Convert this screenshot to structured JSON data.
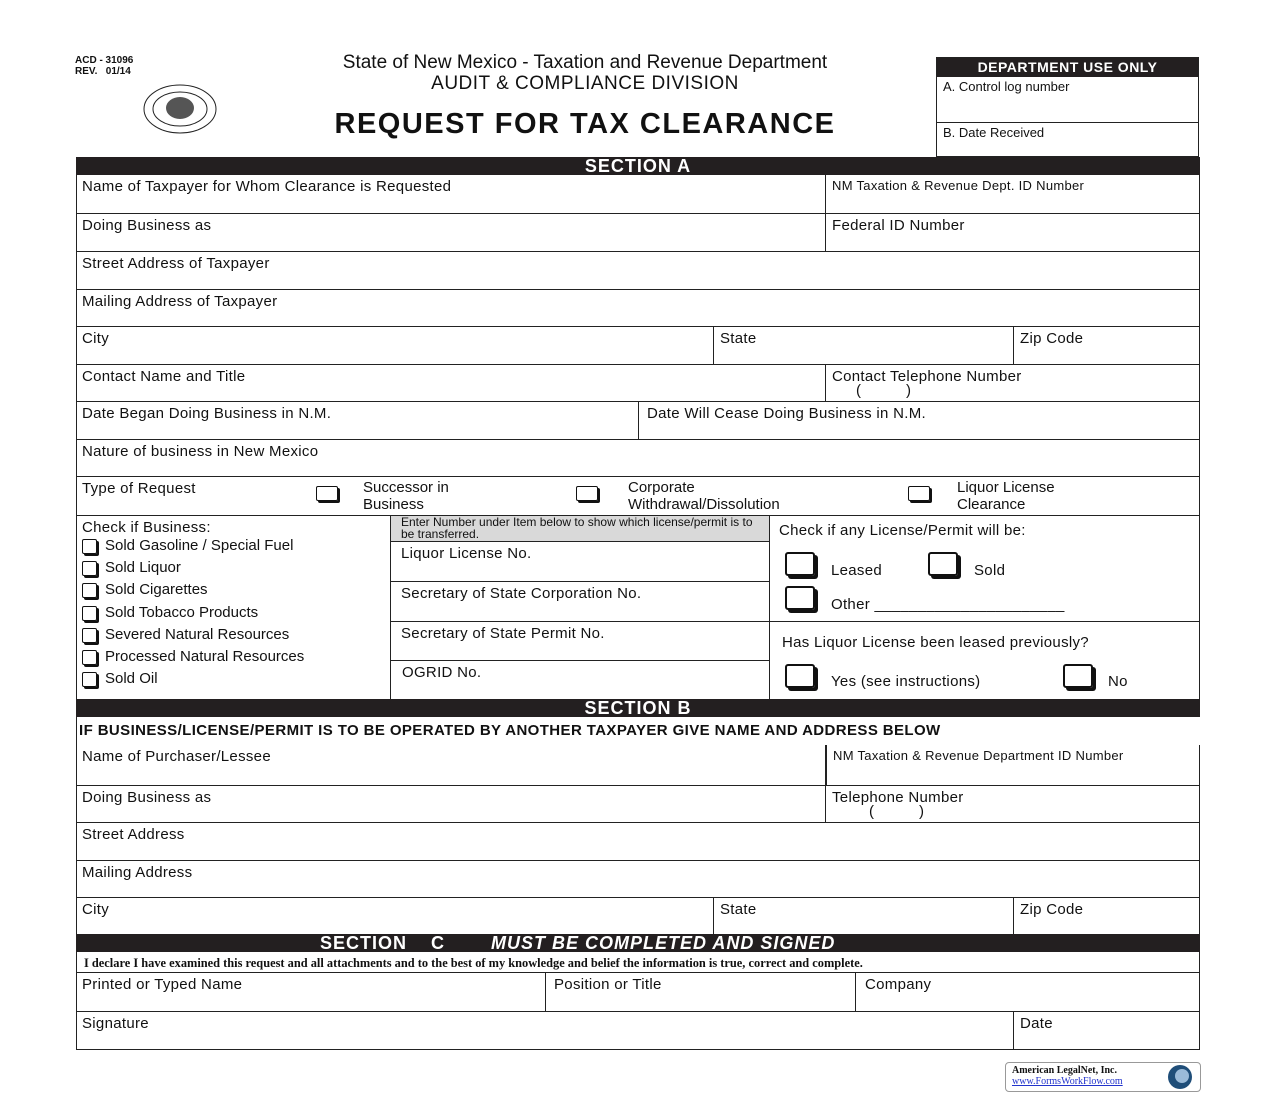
{
  "header": {
    "form_no": "ACD - 31096",
    "rev": "REV.   01/14",
    "agency": "State of New Mexico - Taxation and Revenue Department",
    "division": "AUDIT & COMPLIANCE DIVISION",
    "title": "REQUEST FOR TAX CLEARANCE",
    "seal_text": "Great Seal of the State of New Mexico"
  },
  "dept_use": {
    "title": "DEPARTMENT USE ONLY",
    "a": "A. Control log number",
    "b": "B. Date Received"
  },
  "section_a": {
    "title": "SECTION     A",
    "taxpayer_name": "Name of Taxpayer for Whom Clearance is Requested",
    "trd_id": "NM Taxation & Revenue Dept. ID Number",
    "dba": "Doing Business as",
    "fein": "Federal ID Number",
    "street": "Street Address of Taxpayer",
    "mailing": "Mailing Address of Taxpayer",
    "city": "City",
    "state": "State",
    "zip": "Zip Code",
    "contact": "Contact Name and Title",
    "contact_phone": "Contact Telephone Number",
    "phone_parens": "(          )",
    "date_began": "Date Began Doing Business in N.M.",
    "date_cease": "Date Will Cease Doing Business in N.M.",
    "nature": "Nature of business in New Mexico",
    "type_of_request": "Type of Request",
    "request_options": [
      "Successor in Business",
      "Corporate Withdrawal/Dissolution",
      "Liquor License Clearance"
    ],
    "check_business": "Check if Business:",
    "business_options": [
      "Sold Gasoline / Special Fuel",
      "Sold Liquor",
      "Sold Cigarettes",
      "Sold Tobacco Products",
      "Severed Natural Resources",
      "Processed Natural Resources",
      "Sold Oil"
    ],
    "license_note": "Enter Number under Item below to show which license/permit is to be transferred.",
    "license_fields": [
      "Liquor License No.",
      "Secretary of State Corporation No.",
      "Secretary of State Permit No.",
      "OGRID No."
    ],
    "license_will_be": "Check if any License/Permit will be:",
    "leased": "Leased",
    "sold": "Sold",
    "other": "Other ______________________",
    "leased_prev": "Has Liquor License been leased previously?",
    "yes": "Yes (see instructions)",
    "no": "No"
  },
  "section_b": {
    "title": "SECTION     B",
    "instruction": "IF BUSINESS/LICENSE/PERMIT IS TO BE OPERATED BY ANOTHER TAXPAYER GIVE NAME AND ADDRESS BELOW",
    "purchaser": "Name of Purchaser/Lessee",
    "trd_id": "NM Taxation & Revenue Department ID Number",
    "dba": "Doing Business as",
    "phone": "Telephone Number",
    "phone_parens": "(          )",
    "street": "Street Address",
    "mailing": "Mailing Address",
    "city": "City",
    "state": "State",
    "zip": "Zip Code"
  },
  "section_c": {
    "title": "SECTION    C",
    "subtitle": "MUST BE COMPLETED AND SIGNED",
    "declaration": "I declare I have examined this request and all attachments and to the best of my knowledge and belief the information is true, correct and complete.",
    "printed_name": "Printed or Typed Name",
    "position": "Position or Title",
    "company": "Company",
    "signature": "Signature",
    "date": "Date"
  },
  "footer": {
    "vendor": "American LegalNet, Inc.",
    "url": "www.FormsWorkFlow.com"
  }
}
